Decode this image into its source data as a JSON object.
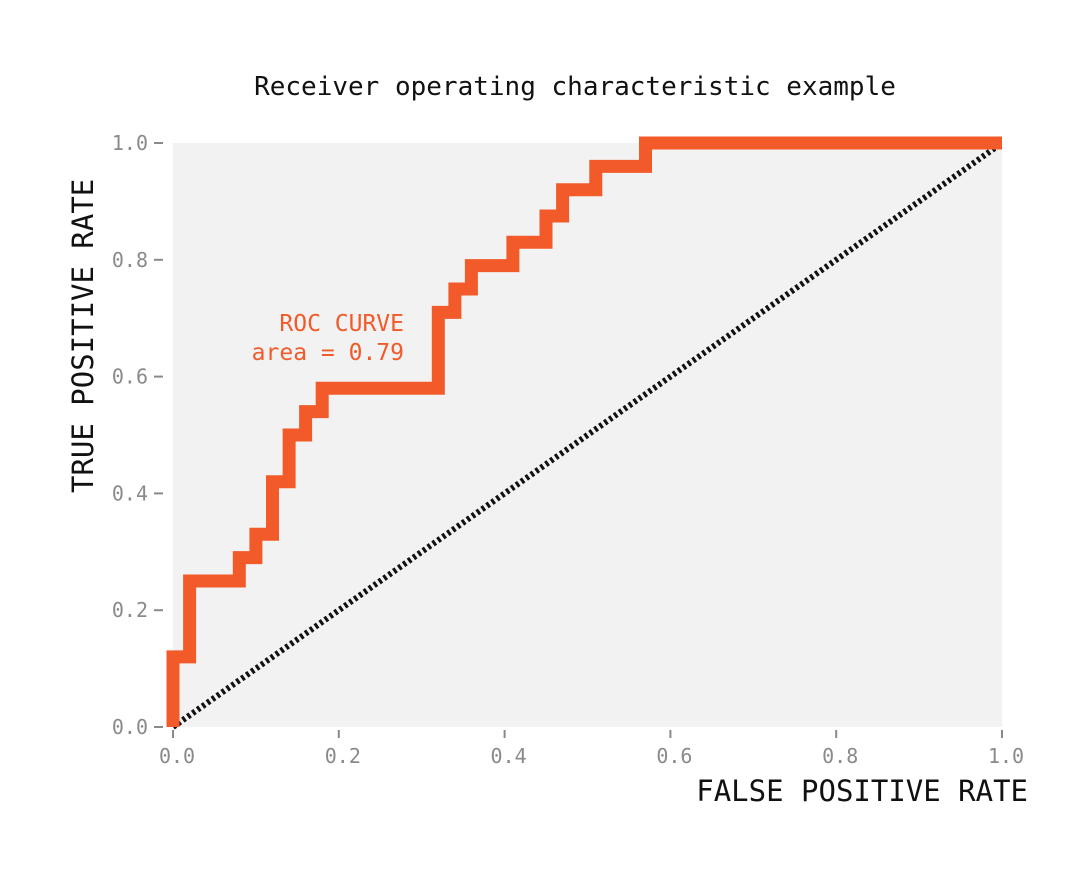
{
  "chart_data": {
    "type": "line",
    "title": "Receiver operating characteristic example",
    "xlabel": "FALSE POSITIVE RATE",
    "ylabel": "TRUE POSITIVE RATE",
    "xlim": [
      0.0,
      1.0
    ],
    "ylim": [
      0.0,
      1.0
    ],
    "x_ticks": [
      "0.0",
      "0.2",
      "0.4",
      "0.6",
      "0.8",
      "1.0"
    ],
    "y_ticks": [
      "0.0",
      "0.2",
      "0.4",
      "0.6",
      "0.8",
      "1.0"
    ],
    "grid": false,
    "colors": {
      "roc": "#f25a29",
      "diagonal": "#111111",
      "plot_bg": "#f2f2f2",
      "ticks": "#8a8a8a"
    },
    "annotation": {
      "line1": "ROC CURVE",
      "line2": "area = 0.79"
    },
    "series": [
      {
        "style": "solid",
        "points": [
          [
            0.0,
            0.0
          ],
          [
            0.0,
            0.12
          ],
          [
            0.02,
            0.12
          ],
          [
            0.02,
            0.25
          ],
          [
            0.08,
            0.25
          ],
          [
            0.08,
            0.29
          ],
          [
            0.1,
            0.29
          ],
          [
            0.1,
            0.33
          ],
          [
            0.12,
            0.33
          ],
          [
            0.12,
            0.42
          ],
          [
            0.14,
            0.42
          ],
          [
            0.14,
            0.5
          ],
          [
            0.16,
            0.5
          ],
          [
            0.16,
            0.54
          ],
          [
            0.18,
            0.54
          ],
          [
            0.18,
            0.58
          ],
          [
            0.32,
            0.58
          ],
          [
            0.32,
            0.71
          ],
          [
            0.34,
            0.71
          ],
          [
            0.34,
            0.75
          ],
          [
            0.36,
            0.75
          ],
          [
            0.36,
            0.79
          ],
          [
            0.41,
            0.79
          ],
          [
            0.41,
            0.83
          ],
          [
            0.45,
            0.83
          ],
          [
            0.45,
            0.875
          ],
          [
            0.47,
            0.875
          ],
          [
            0.47,
            0.92
          ],
          [
            0.51,
            0.92
          ],
          [
            0.51,
            0.96
          ],
          [
            0.57,
            0.96
          ],
          [
            0.57,
            1.0
          ],
          [
            1.0,
            1.0
          ]
        ]
      },
      {
        "style": "dotted",
        "points": [
          [
            0.0,
            0.0
          ],
          [
            1.0,
            1.0
          ]
        ]
      }
    ]
  }
}
